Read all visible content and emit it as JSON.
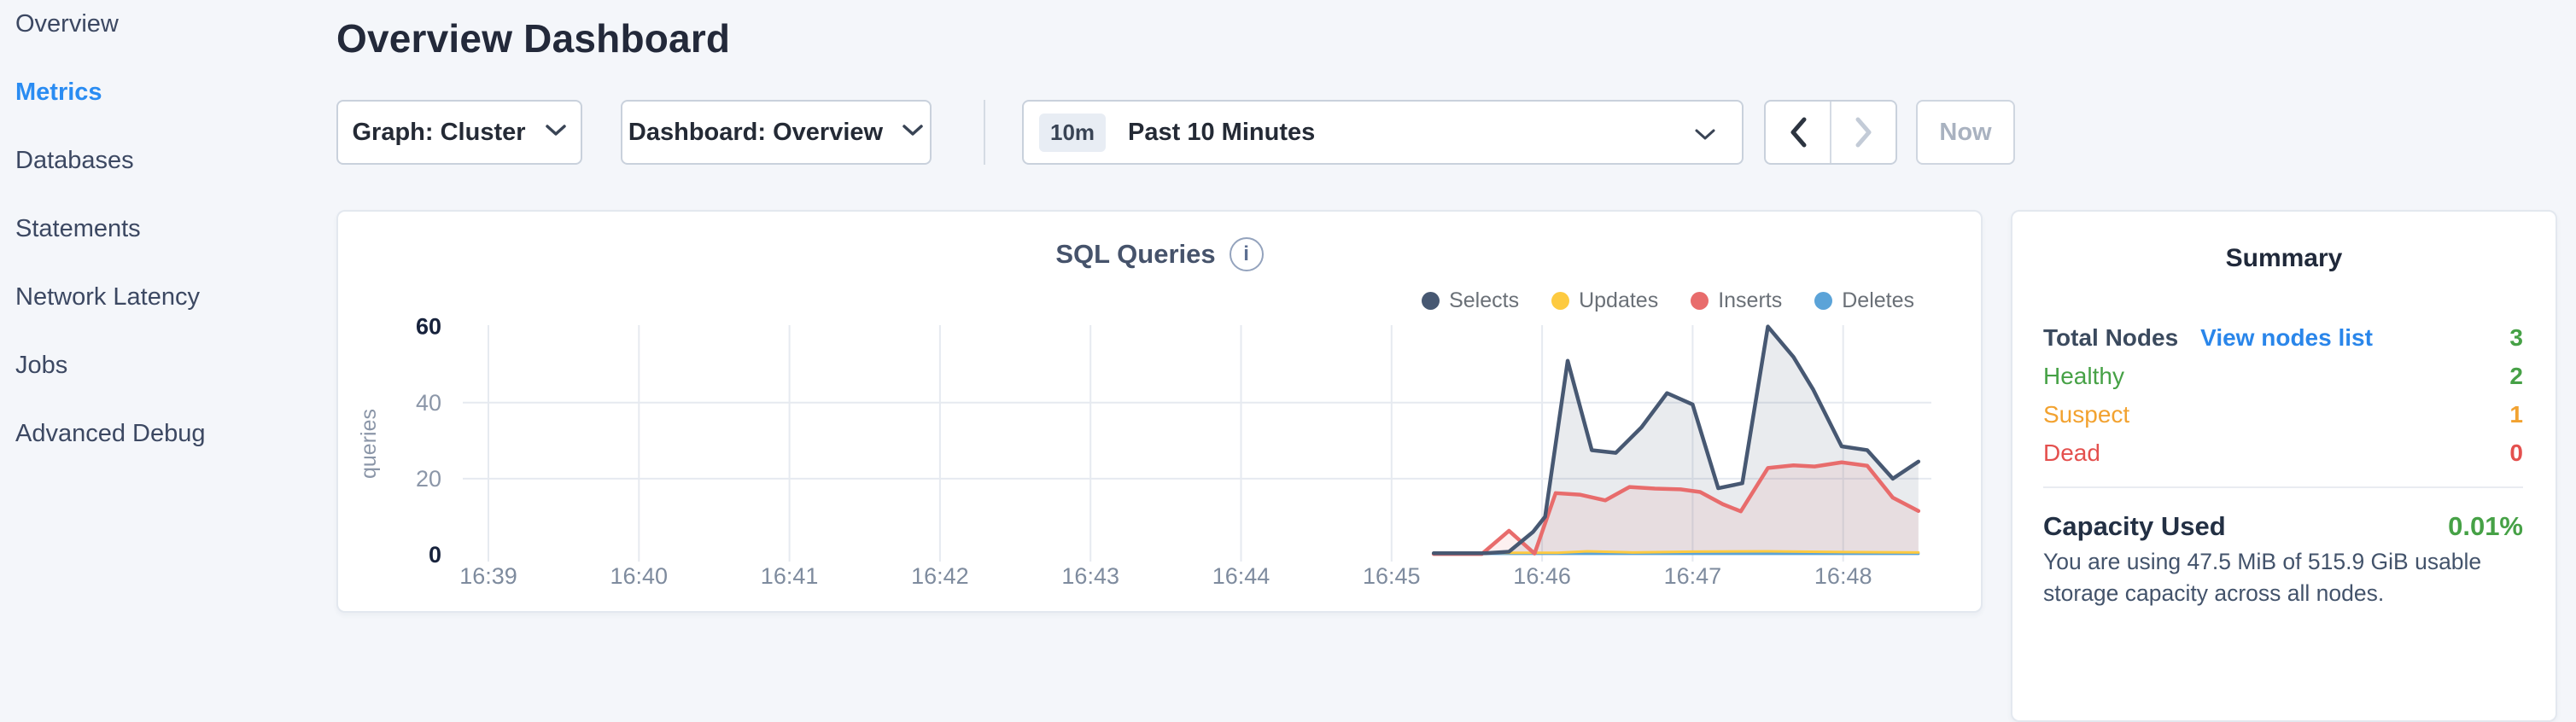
{
  "sidebar": {
    "items": [
      {
        "label": "Overview",
        "active": false
      },
      {
        "label": "Metrics",
        "active": true
      },
      {
        "label": "Databases",
        "active": false
      },
      {
        "label": "Statements",
        "active": false
      },
      {
        "label": "Network Latency",
        "active": false
      },
      {
        "label": "Jobs",
        "active": false
      },
      {
        "label": "Advanced Debug",
        "active": false
      }
    ]
  },
  "header": {
    "title": "Overview Dashboard"
  },
  "controls": {
    "graph_dropdown": {
      "label": "Graph: Cluster"
    },
    "dashboard_dropdown": {
      "label": "Dashboard: Overview"
    },
    "time_selector": {
      "badge": "10m",
      "label": "Past 10 Minutes"
    },
    "prev_enabled": true,
    "next_enabled": false,
    "now_label": "Now"
  },
  "chart_data": {
    "type": "area",
    "title": "SQL Queries",
    "ylabel": "queries",
    "x_ticks": [
      "16:39",
      "16:40",
      "16:41",
      "16:42",
      "16:43",
      "16:44",
      "16:45",
      "16:46",
      "16:47",
      "16:48"
    ],
    "x_tick_start_minute": 39,
    "y_ticks": [
      0,
      20,
      40,
      60
    ],
    "ylim": [
      0,
      60
    ],
    "grid": true,
    "legend_position": "top-right",
    "series": [
      {
        "name": "Selects",
        "color": "#475872",
        "fill": "rgba(71,88,114,0.12)",
        "points": [
          [
            45.28,
            0.4
          ],
          [
            45.62,
            0.4
          ],
          [
            45.78,
            0.8
          ],
          [
            45.94,
            6
          ],
          [
            46.02,
            10
          ],
          [
            46.17,
            51
          ],
          [
            46.33,
            27.5
          ],
          [
            46.49,
            26.8
          ],
          [
            46.66,
            33.5
          ],
          [
            46.83,
            42.5
          ],
          [
            47.0,
            39.5
          ],
          [
            47.17,
            17.5
          ],
          [
            47.33,
            18.8
          ],
          [
            47.5,
            60
          ],
          [
            47.67,
            52
          ],
          [
            47.8,
            43.5
          ],
          [
            47.99,
            28.5
          ],
          [
            48.16,
            27.5
          ],
          [
            48.33,
            20
          ],
          [
            48.5,
            24.5
          ]
        ]
      },
      {
        "name": "Updates",
        "color": "#fdca40",
        "fill": "none",
        "points": [
          [
            45.28,
            0.5
          ],
          [
            46.1,
            0.5
          ],
          [
            46.3,
            0.9
          ],
          [
            46.6,
            0.6
          ],
          [
            47.0,
            0.8
          ],
          [
            47.5,
            0.9
          ],
          [
            48.0,
            0.7
          ],
          [
            48.5,
            0.6
          ]
        ]
      },
      {
        "name": "Inserts",
        "color": "#e86c6c",
        "fill": "rgba(232,108,108,0.10)",
        "points": [
          [
            45.28,
            0.2
          ],
          [
            45.6,
            0.2
          ],
          [
            45.78,
            6.3
          ],
          [
            45.95,
            0.3
          ],
          [
            46.09,
            16.2
          ],
          [
            46.25,
            15.8
          ],
          [
            46.42,
            14.3
          ],
          [
            46.58,
            17.8
          ],
          [
            46.75,
            17.4
          ],
          [
            46.92,
            17.2
          ],
          [
            47.05,
            16.5
          ],
          [
            47.2,
            13.3
          ],
          [
            47.32,
            11.4
          ],
          [
            47.5,
            22.8
          ],
          [
            47.67,
            23.5
          ],
          [
            47.81,
            23.2
          ],
          [
            47.99,
            24.3
          ],
          [
            48.16,
            23.4
          ],
          [
            48.33,
            15
          ],
          [
            48.5,
            11.5
          ]
        ]
      },
      {
        "name": "Deletes",
        "color": "#5ba3d8",
        "fill": "none",
        "points": [
          [
            45.28,
            0.25
          ],
          [
            48.5,
            0.25
          ]
        ]
      }
    ]
  },
  "summary": {
    "title": "Summary",
    "rows": [
      {
        "label": "Total Nodes",
        "label_color": "#3b4a5e",
        "label_bold": true,
        "link": "View nodes list",
        "value": "3",
        "value_color": "#46a146"
      },
      {
        "label": "Healthy",
        "label_color": "#46a146",
        "label_bold": false,
        "link": null,
        "value": "2",
        "value_color": "#46a146"
      },
      {
        "label": "Suspect",
        "label_color": "#f2a230",
        "label_bold": false,
        "link": null,
        "value": "1",
        "value_color": "#f2a230"
      },
      {
        "label": "Dead",
        "label_color": "#e4504e",
        "label_bold": false,
        "link": null,
        "value": "0",
        "value_color": "#e4504e"
      }
    ],
    "capacity": {
      "label": "Capacity Used",
      "value": "0.01%",
      "value_color": "#46a146",
      "description": "You are using 47.5 MiB of 515.9 GiB usable storage capacity across all nodes."
    }
  },
  "colors": {
    "accent_blue": "#2a8cf2",
    "link_blue": "#2a86ea",
    "healthy_green": "#46a146",
    "suspect_orange": "#f2a230",
    "dead_red": "#e4504e",
    "page_bg": "#f4f6fa"
  }
}
